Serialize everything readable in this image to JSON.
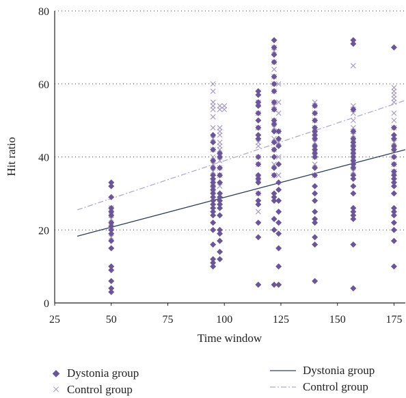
{
  "chart_data": {
    "type": "scatter",
    "xlabel": "Time window",
    "ylabel": "Hit ratio",
    "xlim": [
      25,
      180
    ],
    "ylim": [
      0,
      80
    ],
    "xticks": [
      25,
      50,
      75,
      100,
      125,
      150,
      175
    ],
    "yticks": [
      0,
      20,
      40,
      60,
      80
    ],
    "grid": "horizontal dotted",
    "legend_placement": "bottom",
    "series": [
      {
        "name": "Dystonia group",
        "marker": "diamond",
        "color": "#6b5599",
        "points": [
          [
            50,
            3
          ],
          [
            50,
            4
          ],
          [
            50,
            6
          ],
          [
            50,
            9
          ],
          [
            50,
            10
          ],
          [
            50,
            15
          ],
          [
            50,
            17
          ],
          [
            50,
            19
          ],
          [
            50,
            20
          ],
          [
            50,
            21
          ],
          [
            50,
            22
          ],
          [
            50,
            24
          ],
          [
            50,
            25
          ],
          [
            50,
            26
          ],
          [
            50,
            29
          ],
          [
            50,
            32
          ],
          [
            50,
            33
          ],
          [
            95,
            10
          ],
          [
            95,
            11
          ],
          [
            95,
            12
          ],
          [
            95,
            16
          ],
          [
            95,
            20
          ],
          [
            95,
            22
          ],
          [
            95,
            24
          ],
          [
            95,
            25
          ],
          [
            95,
            26
          ],
          [
            95,
            27
          ],
          [
            95,
            28
          ],
          [
            95,
            29
          ],
          [
            95,
            30
          ],
          [
            95,
            31
          ],
          [
            95,
            32
          ],
          [
            95,
            33
          ],
          [
            95,
            34
          ],
          [
            95,
            35
          ],
          [
            95,
            37
          ],
          [
            95,
            39
          ],
          [
            95,
            42
          ],
          [
            95,
            44
          ],
          [
            95,
            46
          ],
          [
            98,
            12
          ],
          [
            98,
            14
          ],
          [
            98,
            17
          ],
          [
            98,
            19
          ],
          [
            98,
            20
          ],
          [
            98,
            24
          ],
          [
            98,
            26
          ],
          [
            98,
            27
          ],
          [
            98,
            28
          ],
          [
            98,
            29
          ],
          [
            98,
            30
          ],
          [
            98,
            33
          ],
          [
            98,
            35
          ],
          [
            98,
            37
          ],
          [
            98,
            40
          ],
          [
            98,
            41
          ],
          [
            115,
            5
          ],
          [
            115,
            18
          ],
          [
            115,
            22
          ],
          [
            115,
            27
          ],
          [
            115,
            28
          ],
          [
            115,
            30
          ],
          [
            115,
            33
          ],
          [
            115,
            34
          ],
          [
            115,
            35
          ],
          [
            115,
            38
          ],
          [
            115,
            40
          ],
          [
            115,
            45
          ],
          [
            115,
            46
          ],
          [
            115,
            48
          ],
          [
            115,
            50
          ],
          [
            115,
            52
          ],
          [
            115,
            54
          ],
          [
            115,
            55
          ],
          [
            115,
            57
          ],
          [
            115,
            58
          ],
          [
            122,
            5
          ],
          [
            122,
            20
          ],
          [
            122,
            23
          ],
          [
            122,
            28
          ],
          [
            122,
            29
          ],
          [
            122,
            30
          ],
          [
            122,
            35
          ],
          [
            122,
            37
          ],
          [
            122,
            40
          ],
          [
            122,
            42
          ],
          [
            122,
            44
          ],
          [
            122,
            47
          ],
          [
            122,
            49
          ],
          [
            122,
            50
          ],
          [
            122,
            53
          ],
          [
            122,
            55
          ],
          [
            122,
            58
          ],
          [
            122,
            60
          ],
          [
            122,
            62
          ],
          [
            122,
            66
          ],
          [
            122,
            68
          ],
          [
            122,
            70
          ],
          [
            122,
            72
          ],
          [
            124,
            5
          ],
          [
            124,
            10
          ],
          [
            124,
            15
          ],
          [
            124,
            19
          ],
          [
            124,
            22
          ],
          [
            124,
            25
          ],
          [
            124,
            28
          ],
          [
            124,
            31
          ],
          [
            124,
            33
          ],
          [
            124,
            38
          ],
          [
            124,
            43
          ],
          [
            124,
            45
          ],
          [
            124,
            47
          ],
          [
            140,
            6
          ],
          [
            140,
            16
          ],
          [
            140,
            18
          ],
          [
            140,
            22
          ],
          [
            140,
            23
          ],
          [
            140,
            25
          ],
          [
            140,
            28
          ],
          [
            140,
            30
          ],
          [
            140,
            32
          ],
          [
            140,
            35
          ],
          [
            140,
            37
          ],
          [
            140,
            40
          ],
          [
            140,
            41
          ],
          [
            140,
            42
          ],
          [
            140,
            43
          ],
          [
            140,
            45
          ],
          [
            140,
            46
          ],
          [
            140,
            47
          ],
          [
            140,
            48
          ],
          [
            140,
            50
          ],
          [
            140,
            52
          ],
          [
            140,
            54
          ],
          [
            157,
            4
          ],
          [
            157,
            16
          ],
          [
            157,
            23
          ],
          [
            157,
            24
          ],
          [
            157,
            25
          ],
          [
            157,
            26
          ],
          [
            157,
            30
          ],
          [
            157,
            32
          ],
          [
            157,
            34
          ],
          [
            157,
            35
          ],
          [
            157,
            37
          ],
          [
            157,
            38
          ],
          [
            157,
            39
          ],
          [
            157,
            40
          ],
          [
            157,
            41
          ],
          [
            157,
            42
          ],
          [
            157,
            43
          ],
          [
            157,
            44
          ],
          [
            157,
            45
          ],
          [
            157,
            47
          ],
          [
            157,
            53
          ],
          [
            157,
            71
          ],
          [
            157,
            72
          ],
          [
            175,
            10
          ],
          [
            175,
            17
          ],
          [
            175,
            20
          ],
          [
            175,
            22
          ],
          [
            175,
            24
          ],
          [
            175,
            25
          ],
          [
            175,
            26
          ],
          [
            175,
            30
          ],
          [
            175,
            32
          ],
          [
            175,
            33
          ],
          [
            175,
            34
          ],
          [
            175,
            35
          ],
          [
            175,
            36
          ],
          [
            175,
            38
          ],
          [
            175,
            40
          ],
          [
            175,
            42
          ],
          [
            175,
            43
          ],
          [
            175,
            45
          ],
          [
            175,
            46
          ],
          [
            175,
            48
          ],
          [
            175,
            70
          ]
        ]
      },
      {
        "name": "Control group",
        "marker": "x",
        "color": "#a79bc4",
        "points": [
          [
            50,
            18
          ],
          [
            50,
            21
          ],
          [
            50,
            23
          ],
          [
            50,
            24
          ],
          [
            50,
            26
          ],
          [
            95,
            31
          ],
          [
            95,
            33
          ],
          [
            95,
            36
          ],
          [
            95,
            38
          ],
          [
            95,
            40
          ],
          [
            95,
            42
          ],
          [
            95,
            45
          ],
          [
            95,
            48
          ],
          [
            95,
            51
          ],
          [
            95,
            53
          ],
          [
            95,
            54
          ],
          [
            95,
            55
          ],
          [
            95,
            58
          ],
          [
            95,
            60
          ],
          [
            98,
            32
          ],
          [
            98,
            35
          ],
          [
            98,
            37
          ],
          [
            98,
            39
          ],
          [
            98,
            40
          ],
          [
            98,
            42
          ],
          [
            98,
            43
          ],
          [
            98,
            44
          ],
          [
            98,
            46
          ],
          [
            98,
            47
          ],
          [
            98,
            48
          ],
          [
            98,
            53
          ],
          [
            98,
            54
          ],
          [
            100,
            53
          ],
          [
            100,
            54
          ],
          [
            115,
            25
          ],
          [
            115,
            30
          ],
          [
            115,
            34
          ],
          [
            115,
            38
          ],
          [
            115,
            40
          ],
          [
            115,
            43
          ],
          [
            115,
            44
          ],
          [
            115,
            48
          ],
          [
            115,
            52
          ],
          [
            115,
            55
          ],
          [
            122,
            35
          ],
          [
            122,
            38
          ],
          [
            122,
            42
          ],
          [
            122,
            45
          ],
          [
            122,
            48
          ],
          [
            122,
            50
          ],
          [
            122,
            53
          ],
          [
            122,
            54
          ],
          [
            122,
            55
          ],
          [
            122,
            58
          ],
          [
            122,
            60
          ],
          [
            122,
            62
          ],
          [
            122,
            64
          ],
          [
            122,
            66
          ],
          [
            122,
            69
          ],
          [
            122,
            70
          ],
          [
            124,
            35
          ],
          [
            124,
            40
          ],
          [
            124,
            44
          ],
          [
            124,
            47
          ],
          [
            124,
            52
          ],
          [
            124,
            55
          ],
          [
            124,
            60
          ],
          [
            140,
            35
          ],
          [
            140,
            38
          ],
          [
            140,
            40
          ],
          [
            140,
            42
          ],
          [
            140,
            44
          ],
          [
            140,
            46
          ],
          [
            140,
            48
          ],
          [
            140,
            50
          ],
          [
            140,
            52
          ],
          [
            140,
            54
          ],
          [
            140,
            55
          ],
          [
            157,
            36
          ],
          [
            157,
            38
          ],
          [
            157,
            40
          ],
          [
            157,
            42
          ],
          [
            157,
            44
          ],
          [
            157,
            46
          ],
          [
            157,
            47
          ],
          [
            157,
            48
          ],
          [
            157,
            50
          ],
          [
            157,
            52
          ],
          [
            157,
            53
          ],
          [
            157,
            54
          ],
          [
            157,
            65
          ],
          [
            175,
            36
          ],
          [
            175,
            38
          ],
          [
            175,
            40
          ],
          [
            175,
            42
          ],
          [
            175,
            44
          ],
          [
            175,
            48
          ],
          [
            175,
            50
          ],
          [
            175,
            52
          ],
          [
            175,
            55
          ],
          [
            175,
            56
          ],
          [
            175,
            57
          ],
          [
            175,
            58
          ],
          [
            175,
            59
          ]
        ]
      }
    ],
    "trendlines": [
      {
        "name": "Dystonia group",
        "style": "solid",
        "color": "#2e3f62",
        "x": [
          35,
          180
        ],
        "y": [
          18.3,
          42
        ]
      },
      {
        "name": "Control group",
        "style": "dash-dot",
        "color": "#b5a8d0",
        "x": [
          35,
          180
        ],
        "y": [
          25.5,
          55.5
        ]
      }
    ]
  },
  "legend": {
    "markers": [
      {
        "label": "Dystonia group",
        "symbol": "◆",
        "color": "#6b5599"
      },
      {
        "label": "Control group",
        "symbol": "×",
        "color": "#a79bc4"
      }
    ],
    "lines": [
      {
        "label": "Dystonia group",
        "style": "solid",
        "color": "#2e3f62"
      },
      {
        "label": "Control group",
        "style": "dash-dot",
        "color": "#b5a8d0"
      }
    ]
  }
}
